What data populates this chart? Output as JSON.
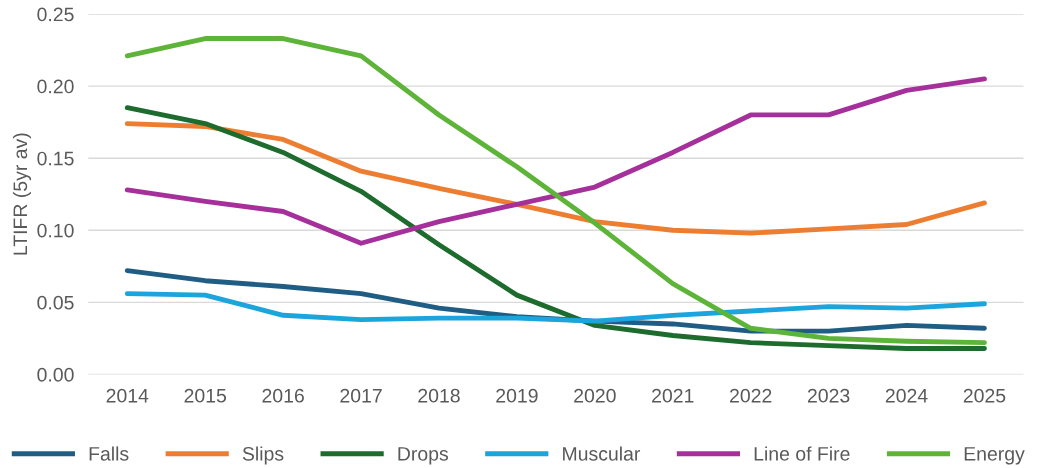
{
  "chart_data": {
    "type": "line",
    "ylabel": "LTIFR (5yr av)",
    "categories": [
      "2014",
      "2015",
      "2016",
      "2017",
      "2018",
      "2019",
      "2020",
      "2021",
      "2022",
      "2023",
      "2024",
      "2025"
    ],
    "series": [
      {
        "name": "Falls",
        "color": "#1f5d85",
        "values": [
          0.072,
          0.065,
          0.061,
          0.056,
          0.046,
          0.04,
          0.037,
          0.035,
          0.03,
          0.03,
          0.034,
          0.032
        ]
      },
      {
        "name": "Slips",
        "color": "#ed7d31",
        "values": [
          0.174,
          0.172,
          0.163,
          0.141,
          0.129,
          0.118,
          0.106,
          0.1,
          0.098,
          0.101,
          0.104,
          0.119
        ]
      },
      {
        "name": "Drops",
        "color": "#1e6b2e",
        "values": [
          0.185,
          0.174,
          0.154,
          0.127,
          0.09,
          0.055,
          0.034,
          0.027,
          0.022,
          0.02,
          0.018,
          0.018
        ]
      },
      {
        "name": "Muscular",
        "color": "#1ca4dc",
        "values": [
          0.056,
          0.055,
          0.041,
          0.038,
          0.039,
          0.039,
          0.037,
          0.041,
          0.044,
          0.047,
          0.046,
          0.049
        ]
      },
      {
        "name": "Line of Fire",
        "color": "#a5309b",
        "values": [
          0.128,
          0.12,
          0.113,
          0.091,
          0.106,
          0.118,
          0.13,
          0.154,
          0.18,
          0.18,
          0.197,
          0.205
        ]
      },
      {
        "name": "Energy",
        "color": "#5db438",
        "values": [
          0.221,
          0.233,
          0.233,
          0.221,
          0.18,
          0.144,
          0.105,
          0.063,
          0.032,
          0.025,
          0.023,
          0.022
        ]
      }
    ],
    "ylim": [
      0,
      0.25
    ],
    "yticks": [
      {
        "value": 0,
        "label": "0.00"
      },
      {
        "value": 0.05,
        "label": "0.05"
      },
      {
        "value": 0.1,
        "label": "0.10"
      },
      {
        "value": 0.15,
        "label": "0.15"
      },
      {
        "value": 0.2,
        "label": "0.20"
      },
      {
        "value": 0.25,
        "label": "0.25"
      }
    ],
    "grid": "y",
    "legend": "bottom",
    "marker": "none",
    "line_style": "solid"
  }
}
